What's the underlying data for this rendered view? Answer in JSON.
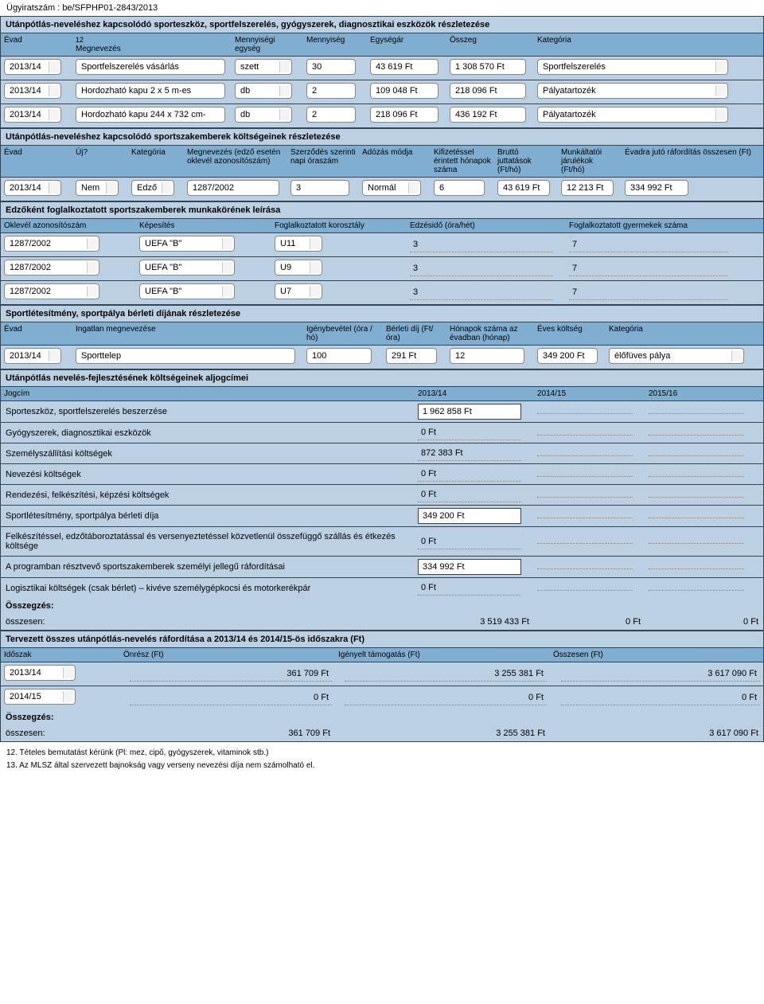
{
  "header": {
    "case_no_label": "Ügyiratszám :",
    "case_no": "be/SFPHP01-2843/2013"
  },
  "section1": {
    "title": "Utánpótlás-neveléshez kapcsolódó sporteszköz, sportfelszerelés, gyógyszerek, diagnosztikai eszközök részletezése",
    "cols": [
      "Évad",
      "12",
      "Megnevezés",
      "Mennyiségi egység",
      "Mennyiség",
      "Egységár",
      "Összeg",
      "Kategória"
    ],
    "rows": [
      {
        "evad": "2013/14",
        "nev": "Sportfelszerelés vásárlás",
        "egyseg": "szett",
        "menny": "30",
        "ar": "43 619 Ft",
        "ossz": "1 308 570 Ft",
        "kat": "Sportfelszerelés"
      },
      {
        "evad": "2013/14",
        "nev": "Hordozható kapu 2 x 5 m-es",
        "egyseg": "db",
        "menny": "2",
        "ar": "109 048 Ft",
        "ossz": "218 096 Ft",
        "kat": "Pályatartozék"
      },
      {
        "evad": "2013/14",
        "nev": "Hordozható kapu 244 x 732 cm-",
        "egyseg": "db",
        "menny": "2",
        "ar": "218 096 Ft",
        "ossz": "436 192 Ft",
        "kat": "Pályatartozék"
      }
    ]
  },
  "section2": {
    "title": "Utánpótlás-neveléshez kapcsolódó sportszakemberek költségeinek részletezése",
    "cols": [
      "Évad",
      "Új?",
      "Kategória",
      "Megnevezés (edző esetén oklevél azonosítószám)",
      "Szerződés szerinti napi óraszám",
      "Adózás módja",
      "Kifizetéssel érintett hónapok száma",
      "Bruttó juttatások (Ft/hó)",
      "Munkáltatói járulékok (Ft/hó)",
      "Évadra jutó ráfordítás összesen (Ft)"
    ],
    "row": {
      "evad": "2013/14",
      "uj": "Nem",
      "kat": "Edző",
      "azon": "1287/2002",
      "ora": "3",
      "adoz": "Normál",
      "ho": "6",
      "brutto": "43 619 Ft",
      "jar": "12 213 Ft",
      "evadra": "334 992 Ft"
    }
  },
  "section3": {
    "title": "Edzőként foglalkoztatott sportszakemberek munkakörének leírása",
    "cols": [
      "Oklevél azonosítószám",
      "Képesítés",
      "Foglalkoztatott korosztály",
      "Edzésidő (óra/hét)",
      "Foglalkoztatott gyermekek száma"
    ],
    "rows": [
      {
        "azon": "1287/2002",
        "kep": "UEFA \"B\"",
        "kor": "U11",
        "ido": "3",
        "gy": "7"
      },
      {
        "azon": "1287/2002",
        "kep": "UEFA \"B\"",
        "kor": "U9",
        "ido": "3",
        "gy": "7"
      },
      {
        "azon": "1287/2002",
        "kep": "UEFA \"B\"",
        "kor": "U7",
        "ido": "3",
        "gy": "7"
      }
    ]
  },
  "section4": {
    "title": "Sportlétesítmény, sportpálya bérleti díjának részletezése",
    "cols": [
      "Évad",
      "Ingatlan megnevezése",
      "Igénybevétel (óra / hó)",
      "Bérleti díj (Ft/óra)",
      "Hónapok száma az évadban (hónap)",
      "Éves költség",
      "Kategória"
    ],
    "row": {
      "evad": "2013/14",
      "ing": "Sporttelep",
      "ora": "100",
      "dij": "291 Ft",
      "ho": "12",
      "eves": "349 200 Ft",
      "kat": "élőfüves pálya"
    }
  },
  "section5": {
    "title": "Utánpótlás nevelés-fejlesztésének költségeinek aljogcímei",
    "cols": [
      "Jogcím",
      "2013/14",
      "2014/15",
      "2015/16"
    ],
    "rows": [
      {
        "j": "Sporteszköz, sportfelszerelés beszerzése",
        "v1": "1 962 858 Ft",
        "box": true
      },
      {
        "j": "Gyógyszerek, diagnosztikai eszközök",
        "v1": "0 Ft"
      },
      {
        "j": "Személyszállítási költségek",
        "v1": "872 383 Ft"
      },
      {
        "j": "Nevezési költségek",
        "v1": "0 Ft"
      },
      {
        "j": "Rendezési, felkészítési, képzési költségek",
        "v1": "0 Ft"
      },
      {
        "j": "Sportlétesítmény, sportpálya bérleti díja",
        "v1": "349 200 Ft",
        "box": true
      },
      {
        "j": "Felkészítéssel, edzőtáboroztatással és versenyeztetéssel közvetlenül összefüggő szállás és étkezés költsége",
        "v1": "0 Ft"
      },
      {
        "j": "A programban résztvevő sportszakemberek személyi jellegű ráfordításai",
        "v1": "334 992 Ft",
        "box": true
      },
      {
        "j": "Logisztikai költségek (csak bérlet) – kivéve személygépkocsi és motorkerékpár",
        "v1": "0 Ft"
      }
    ],
    "sum_label": "Összegzés:",
    "sum_row_label": "összesen:",
    "sum": {
      "v1": "3 519 433 Ft",
      "v2": "0 Ft",
      "v3": "0 Ft"
    }
  },
  "section6": {
    "title": "Tervezett összes utánpótlás-nevelés ráfordítása a 2013/14 és 2014/15-ös időszakra (Ft)",
    "cols": [
      "Időszak",
      "Önrész (Ft)",
      "Igényelt támogatás (Ft)",
      "Összesen (Ft)"
    ],
    "rows": [
      {
        "ido": "2013/14",
        "onr": "361 709 Ft",
        "ig": "3 255 381 Ft",
        "ossz": "3 617 090 Ft"
      },
      {
        "ido": "2014/15",
        "onr": "0 Ft",
        "ig": "0 Ft",
        "ossz": "0 Ft"
      }
    ],
    "sum_label": "Összegzés:",
    "sum_row_label": "összesen:",
    "sum": {
      "onr": "361 709 Ft",
      "ig": "3 255 381 Ft",
      "ossz": "3 617 090 Ft"
    }
  },
  "footer": {
    "n12": "12. Tételes bemutatást kérünk (Pl: mez, cipő, gyógyszerek, vitaminok stb.)",
    "n13": "13. Az MLSZ által szervezett bajnokság vagy verseny nevezési díja nem számolható el."
  }
}
